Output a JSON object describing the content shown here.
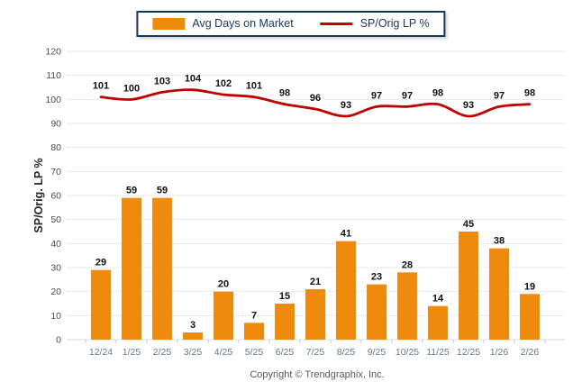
{
  "chart_data": {
    "type": "combo",
    "categories": [
      "12/24",
      "1/25",
      "2/25",
      "3/25",
      "4/25",
      "5/25",
      "6/25",
      "7/25",
      "8/25",
      "9/25",
      "10/25",
      "11/25",
      "12/25",
      "1/26",
      "2/26"
    ],
    "series": [
      {
        "name": "Avg Days on Market",
        "type": "bar",
        "color": "#EE8B0F",
        "values": [
          29,
          59,
          59,
          3,
          20,
          7,
          15,
          21,
          41,
          23,
          28,
          14,
          45,
          38,
          19
        ]
      },
      {
        "name": "SP/Orig LP %",
        "type": "line",
        "color": "#C00000",
        "values": [
          101,
          100,
          103,
          104,
          102,
          101,
          98,
          96,
          93,
          97,
          97,
          98,
          93,
          97,
          98
        ]
      }
    ],
    "title": "",
    "xlabel": "",
    "ylabel": "SP/Orig. LP %",
    "ylim": [
      0,
      120
    ],
    "ytick_step": 10,
    "grid": true,
    "legend_position": "top"
  },
  "footer": {
    "copyright": "Copyright © Trendgraphix, Inc."
  },
  "colors": {
    "grid": "#e9e9e9",
    "axis_line": "#d9d9d9",
    "x_tick": "#c9c9c9",
    "y_tick_label": "#4d4d4d",
    "x_tick_label": "#68788c",
    "data_label": "#111111",
    "axis_title": "#23262e",
    "legend_border": "#17375E",
    "legend_text": "#17375E",
    "copyright_text": "#595959"
  }
}
